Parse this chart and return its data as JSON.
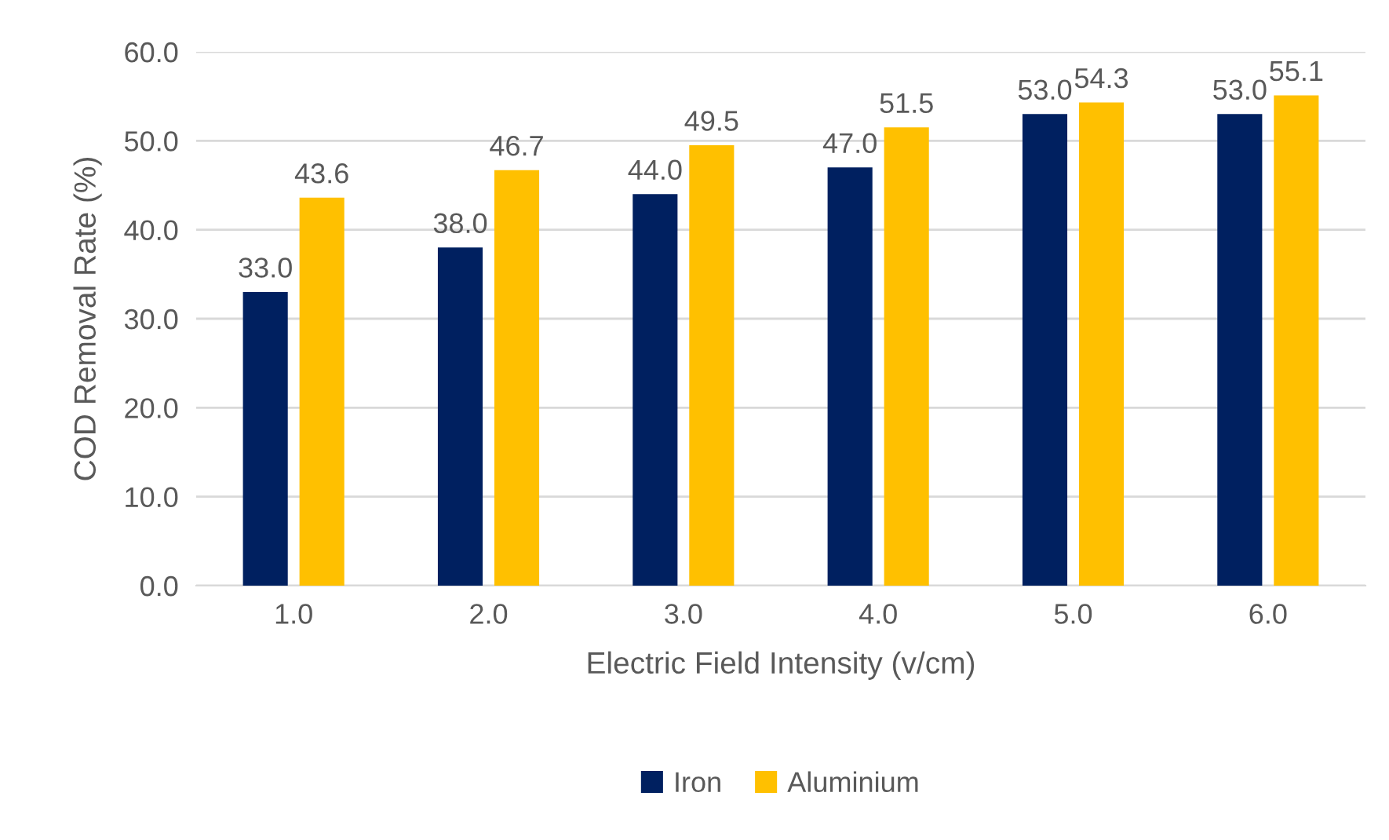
{
  "chart_data": {
    "type": "bar",
    "xlabel": "Electric Field Intensity (v/cm)",
    "ylabel": "COD Removal Rate (%)",
    "categories": [
      "1.0",
      "2.0",
      "3.0",
      "4.0",
      "5.0",
      "6.0"
    ],
    "series": [
      {
        "name": "Iron",
        "color": "#002060",
        "values": [
          33.0,
          38.0,
          44.0,
          47.0,
          53.0,
          53.0
        ],
        "value_labels": [
          "33.0",
          "38.0",
          "44.0",
          "47.0",
          "53.0",
          "53.0"
        ]
      },
      {
        "name": "Aluminium",
        "color": "#ffc000",
        "values": [
          43.6,
          46.7,
          49.5,
          51.5,
          54.3,
          55.1
        ],
        "value_labels": [
          "43.6",
          "46.7",
          "49.5",
          "51.5",
          "54.3",
          "55.1"
        ]
      }
    ],
    "ylim": [
      0,
      60
    ],
    "yticks": [
      {
        "value": 0,
        "label": "0.0"
      },
      {
        "value": 10,
        "label": "10.0"
      },
      {
        "value": 20,
        "label": "20.0"
      },
      {
        "value": 30,
        "label": "30.0"
      },
      {
        "value": 40,
        "label": "40.0"
      },
      {
        "value": 50,
        "label": "50.0"
      },
      {
        "value": 60,
        "label": "60.0"
      }
    ],
    "grid": "y",
    "legend": "bottom"
  }
}
